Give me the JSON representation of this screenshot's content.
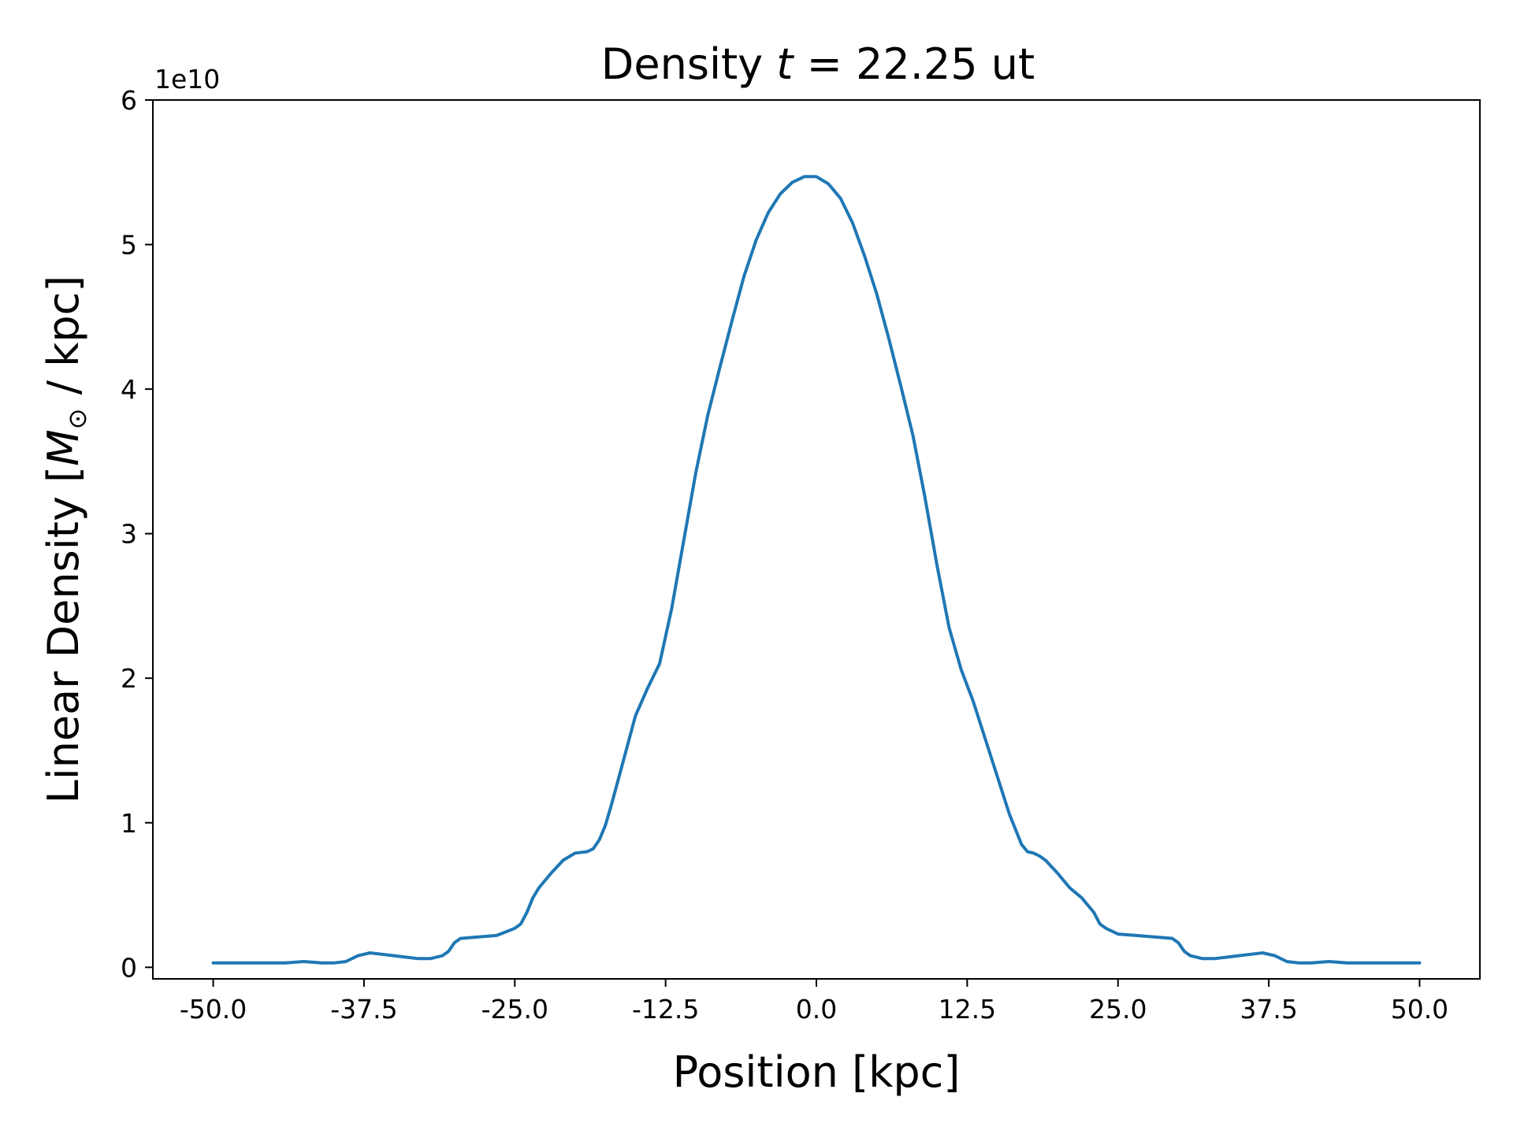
{
  "chart_data": {
    "type": "line",
    "title": "Density t = 22.25 ut",
    "title_parts": {
      "prefix": "Density ",
      "var": "t",
      "eq": " =  ",
      "value": "22.25 ut"
    },
    "xlabel": "Position [kpc]",
    "ylabel": "Linear Density [M⊙ / kpc]",
    "ylabel_parts": {
      "prefix": "Linear Density [",
      "sym": "M",
      "sub": "⊙",
      "suffix": " / kpc]"
    },
    "y_offset_label": "1e10",
    "xlim": [
      -55,
      55
    ],
    "ylim": [
      -0.08,
      6
    ],
    "x_ticks": [
      -50.0,
      -37.5,
      -25.0,
      -12.5,
      0.0,
      12.5,
      25.0,
      37.5,
      50.0
    ],
    "x_tick_labels": [
      "-50.0",
      "-37.5",
      "-25.0",
      "-12.5",
      "0.0",
      "12.5",
      "25.0",
      "37.5",
      "50.0"
    ],
    "y_ticks": [
      0,
      1,
      2,
      3,
      4,
      5,
      6
    ],
    "y_tick_labels": [
      "0",
      "1",
      "2",
      "3",
      "4",
      "5",
      "6"
    ],
    "grid": false,
    "line_color": "#1f77b4",
    "series": [
      {
        "x": [
          -50,
          -48,
          -46,
          -44,
          -42.5,
          -41,
          -40,
          -39,
          -38,
          -37,
          -36,
          -35,
          -34,
          -33,
          -32,
          -31,
          -30.5,
          -30,
          -29.5,
          -28,
          -26.5,
          -25,
          -24.5,
          -24,
          -23.5,
          -23,
          -22,
          -21,
          -20,
          -19,
          -18.5,
          -18,
          -17.5,
          -17,
          -16,
          -15,
          -14,
          -13,
          -12,
          -11,
          -10,
          -9,
          -8,
          -7,
          -6,
          -5,
          -4,
          -3,
          -2,
          -1,
          0,
          1,
          2,
          3,
          4,
          5,
          6,
          7,
          8,
          9,
          10,
          11,
          12,
          13,
          14,
          15,
          16,
          17,
          17.5,
          18,
          18.5,
          19,
          20,
          21,
          22,
          23,
          23.5,
          24,
          24.5,
          25,
          26.5,
          28,
          29.5,
          30,
          30.5,
          31,
          32,
          33,
          34,
          35,
          36,
          37,
          38,
          39,
          40,
          41,
          42.5,
          44,
          46,
          48,
          50
        ],
        "y": [
          0.03,
          0.03,
          0.03,
          0.03,
          0.04,
          0.03,
          0.03,
          0.04,
          0.08,
          0.1,
          0.09,
          0.08,
          0.07,
          0.06,
          0.06,
          0.08,
          0.11,
          0.17,
          0.2,
          0.21,
          0.22,
          0.27,
          0.3,
          0.38,
          0.48,
          0.55,
          0.65,
          0.74,
          0.79,
          0.8,
          0.82,
          0.88,
          0.98,
          1.12,
          1.43,
          1.74,
          1.93,
          2.1,
          2.48,
          2.95,
          3.42,
          3.82,
          4.15,
          4.47,
          4.78,
          5.03,
          5.22,
          5.35,
          5.43,
          5.47,
          5.47,
          5.42,
          5.32,
          5.15,
          4.92,
          4.66,
          4.35,
          4.02,
          3.68,
          3.25,
          2.78,
          2.35,
          2.06,
          1.84,
          1.58,
          1.32,
          1.06,
          0.85,
          0.8,
          0.79,
          0.77,
          0.74,
          0.65,
          0.55,
          0.48,
          0.38,
          0.3,
          0.27,
          0.25,
          0.23,
          0.22,
          0.21,
          0.2,
          0.17,
          0.11,
          0.08,
          0.06,
          0.06,
          0.07,
          0.08,
          0.09,
          0.1,
          0.08,
          0.04,
          0.03,
          0.03,
          0.04,
          0.03,
          0.03,
          0.03,
          0.03
        ]
      }
    ]
  }
}
